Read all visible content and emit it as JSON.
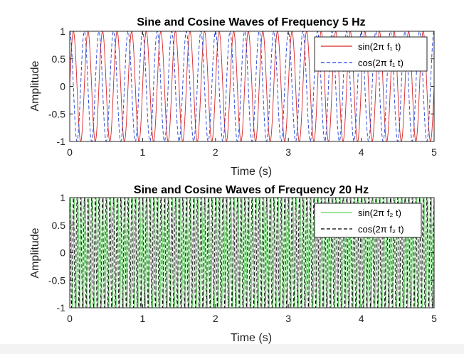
{
  "chart_data": [
    {
      "type": "line",
      "title": "Sine and Cosine Waves of Frequency 5 Hz",
      "xlabel": "Time (s)",
      "ylabel": "Amplitude",
      "xlim": [
        0,
        5
      ],
      "ylim": [
        -1,
        1
      ],
      "xticks": [
        0,
        1,
        2,
        3,
        4,
        5
      ],
      "yticks": [
        1,
        0.5,
        0,
        -0.5,
        -1
      ],
      "ytick_labels": [
        "1",
        "0.5",
        "0",
        "-0.5",
        "-1"
      ],
      "grid": false,
      "legend_position": "top-right",
      "series": [
        {
          "name": "sin(2π f₁ t)",
          "function": "sin",
          "frequency_hz": 5,
          "color": "#d62728",
          "line_style": "solid"
        },
        {
          "name": "cos(2π f₁ t)",
          "function": "cos",
          "frequency_hz": 5,
          "color": "#1f3fd6",
          "line_style": "dashed"
        }
      ]
    },
    {
      "type": "line",
      "title": "Sine and Cosine Waves of Frequency 20 Hz",
      "xlabel": "Time (s)",
      "ylabel": "Amplitude",
      "xlim": [
        0,
        5
      ],
      "ylim": [
        -1,
        1
      ],
      "xticks": [
        0,
        1,
        2,
        3,
        4,
        5
      ],
      "yticks": [
        1,
        0.5,
        0,
        -0.5,
        -1
      ],
      "ytick_labels": [
        "1",
        "0.5",
        "0",
        "-0.5",
        "-1"
      ],
      "grid": false,
      "legend_position": "top-right",
      "series": [
        {
          "name": "sin(2π f₂ t)",
          "function": "sin",
          "frequency_hz": 20,
          "color": "#5fd35f",
          "line_style": "solid"
        },
        {
          "name": "cos(2π f₂ t)",
          "function": "cos",
          "frequency_hz": 20,
          "color": "#000000",
          "line_style": "dashed"
        }
      ]
    }
  ]
}
